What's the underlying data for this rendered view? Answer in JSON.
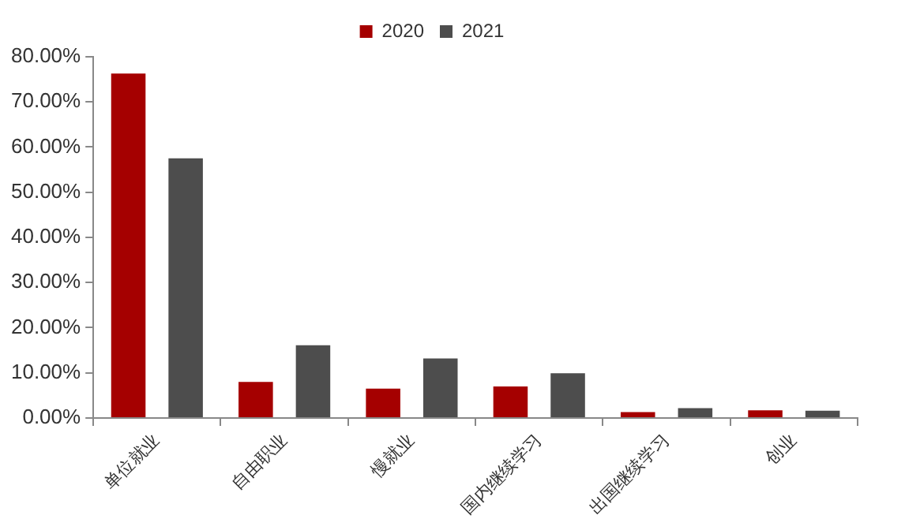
{
  "chart_data": {
    "type": "bar",
    "categories": [
      "单位就业",
      "自由职业",
      "慢就业",
      "国内继续学习",
      "出国继续学习",
      "创业"
    ],
    "series": [
      {
        "name": "2020",
        "color": "#a50000",
        "values": [
          76.3,
          8.0,
          6.5,
          7.0,
          1.3,
          1.7
        ]
      },
      {
        "name": "2021",
        "color": "#4d4d4d",
        "values": [
          57.5,
          16.1,
          13.2,
          9.9,
          2.2,
          1.6
        ]
      }
    ],
    "ylim": [
      0,
      80
    ],
    "yticks": [
      {
        "value": 0,
        "label": "0.00%"
      },
      {
        "value": 10,
        "label": "10.00%"
      },
      {
        "value": 20,
        "label": "20.00%"
      },
      {
        "value": 30,
        "label": "30.00%"
      },
      {
        "value": 40,
        "label": "40.00%"
      },
      {
        "value": 50,
        "label": "50.00%"
      },
      {
        "value": 60,
        "label": "60.00%"
      },
      {
        "value": 70,
        "label": "70.00%"
      },
      {
        "value": 80,
        "label": "80.00%"
      }
    ],
    "grid": false,
    "legend": "top"
  }
}
